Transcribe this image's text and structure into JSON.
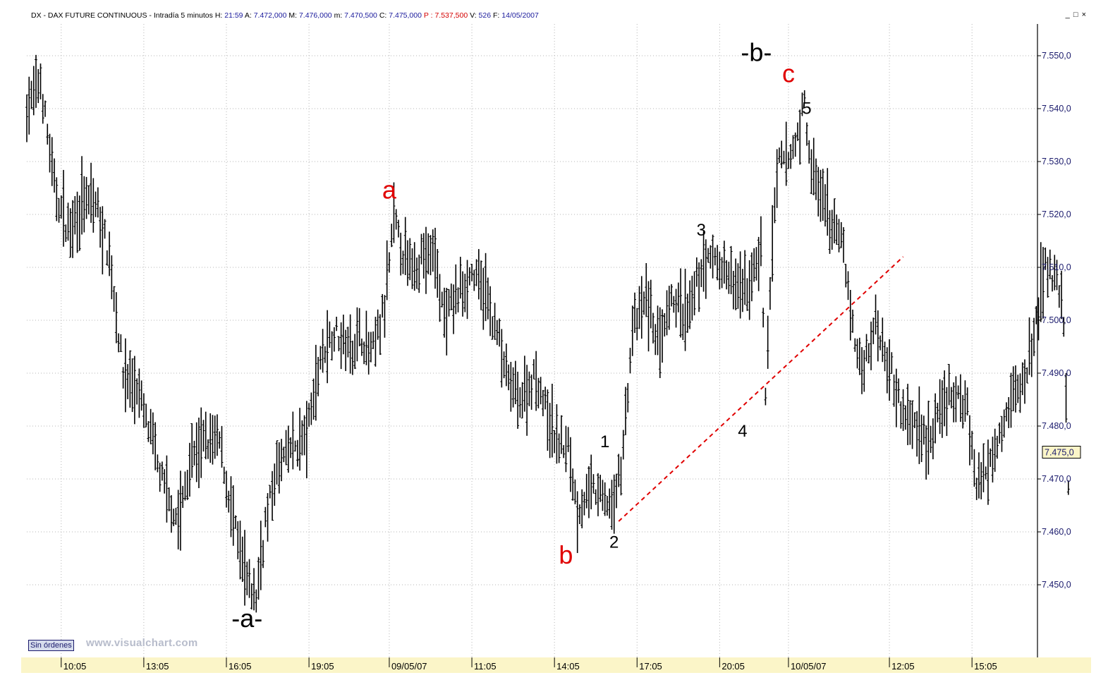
{
  "header": {
    "symbol": "DX - DAX FUTURE CONTINUOUS - Intradía 5 minutos",
    "h_label": "H:",
    "h_value": "21:59",
    "a_label": "A:",
    "a_value": "7.472,000",
    "m_label": "M:",
    "m_value": "7.476,000",
    "mn_label": "m:",
    "mn_value": "7.470,500",
    "c_label": "C:",
    "c_value": "7.475,000",
    "p_label": "P :",
    "p_value": "7.537,500",
    "v_label": "V:",
    "v_value": "526",
    "f_label": "F:",
    "f_value": "14/05/2007"
  },
  "window_controls": {
    "minimize": "_",
    "maximize": "□",
    "close": "×"
  },
  "footer": {
    "orders_button": "Sin órdenes",
    "watermark": "www.visualchart.com"
  },
  "colors": {
    "bars": "#000000",
    "grid": "#b5b5b5",
    "axis_text": "#1a1a6c",
    "annotation_red": "#e00000",
    "annotation_black": "#000000",
    "trendline": "#e00000",
    "time_axis_bg": "#fbf5c8",
    "price_box_bg": "#fbf5c8"
  },
  "chart_data": {
    "type": "bar",
    "subtype": "ohlc",
    "title": "DX - DAX FUTURE CONTINUOUS - Intradía 5 minutos",
    "ylim": [
      7440,
      7554
    ],
    "grid": true,
    "y_ticks": [
      {
        "value": 7550,
        "label": "7.550,0"
      },
      {
        "value": 7540,
        "label": "7.540,0"
      },
      {
        "value": 7530,
        "label": "7.530,0"
      },
      {
        "value": 7520,
        "label": "7.520,0"
      },
      {
        "value": 7510,
        "label": "7.510,0"
      },
      {
        "value": 7500,
        "label": "7.500,0"
      },
      {
        "value": 7490,
        "label": "7.490,0"
      },
      {
        "value": 7480,
        "label": "7.480,0"
      },
      {
        "value": 7470,
        "label": "7.470,0"
      },
      {
        "value": 7460,
        "label": "7.460,0"
      },
      {
        "value": 7450,
        "label": "7.450,0"
      }
    ],
    "last_price": {
      "value": 7475,
      "label": "7.475,0"
    },
    "x_ticks": [
      "10:05",
      "13:05",
      "16:05",
      "19:05",
      "09/05/07",
      "11:05",
      "14:05",
      "17:05",
      "20:05",
      "10/05/07",
      "12:05",
      "15:05"
    ],
    "x_tick_index": [
      15,
      51,
      87,
      123,
      158,
      194,
      230,
      266,
      302,
      332,
      376,
      412
    ],
    "x_count": 440,
    "path": [
      [
        0,
        7540
      ],
      [
        6,
        7545
      ],
      [
        12,
        7525
      ],
      [
        18,
        7517
      ],
      [
        24,
        7522
      ],
      [
        30,
        7522
      ],
      [
        36,
        7512
      ],
      [
        42,
        7490
      ],
      [
        48,
        7487
      ],
      [
        54,
        7478
      ],
      [
        60,
        7468
      ],
      [
        66,
        7462
      ],
      [
        72,
        7474
      ],
      [
        78,
        7477
      ],
      [
        84,
        7477
      ],
      [
        90,
        7462
      ],
      [
        96,
        7450
      ],
      [
        100,
        7448
      ],
      [
        104,
        7462
      ],
      [
        110,
        7473
      ],
      [
        116,
        7476
      ],
      [
        122,
        7478
      ],
      [
        128,
        7493
      ],
      [
        134,
        7498
      ],
      [
        140,
        7495
      ],
      [
        146,
        7497
      ],
      [
        150,
        7493
      ],
      [
        156,
        7502
      ],
      [
        160,
        7519
      ],
      [
        166,
        7510
      ],
      [
        172,
        7512
      ],
      [
        178,
        7512
      ],
      [
        182,
        7500
      ],
      [
        188,
        7505
      ],
      [
        194,
        7509
      ],
      [
        200,
        7505
      ],
      [
        206,
        7496
      ],
      [
        210,
        7488
      ],
      [
        216,
        7485
      ],
      [
        222,
        7490
      ],
      [
        228,
        7480
      ],
      [
        232,
        7477
      ],
      [
        236,
        7476
      ],
      [
        240,
        7464
      ],
      [
        246,
        7468
      ],
      [
        252,
        7466
      ],
      [
        256,
        7465
      ],
      [
        260,
        7476
      ],
      [
        264,
        7498
      ],
      [
        270,
        7504
      ],
      [
        276,
        7495
      ],
      [
        282,
        7504
      ],
      [
        288,
        7500
      ],
      [
        294,
        7510
      ],
      [
        300,
        7512
      ],
      [
        306,
        7508
      ],
      [
        312,
        7505
      ],
      [
        316,
        7508
      ],
      [
        320,
        7514
      ],
      [
        322,
        7486
      ],
      [
        325,
        7515
      ],
      [
        328,
        7530
      ],
      [
        332,
        7530
      ],
      [
        336,
        7535
      ],
      [
        339,
        7541
      ],
      [
        342,
        7528
      ],
      [
        348,
        7521
      ],
      [
        352,
        7517
      ],
      [
        356,
        7514
      ],
      [
        360,
        7498
      ],
      [
        364,
        7490
      ],
      [
        370,
        7500
      ],
      [
        376,
        7492
      ],
      [
        382,
        7482
      ],
      [
        388,
        7480
      ],
      [
        394,
        7477
      ],
      [
        400,
        7485
      ],
      [
        406,
        7485
      ],
      [
        410,
        7484
      ],
      [
        414,
        7468
      ],
      [
        418,
        7472
      ],
      [
        422,
        7477
      ],
      [
        428,
        7484
      ],
      [
        434,
        7488
      ],
      [
        436,
        7490
      ],
      [
        440,
        7500
      ],
      [
        444,
        7510
      ],
      [
        448,
        7508
      ],
      [
        452,
        7500
      ],
      [
        454,
        7470
      ]
    ],
    "annotations": [
      {
        "text": "-a-",
        "x": 96,
        "y": 7442,
        "color": "black",
        "size": 36
      },
      {
        "text": "a",
        "x": 158,
        "y": 7523,
        "color": "red",
        "size": 36
      },
      {
        "text": "b",
        "x": 235,
        "y": 7454,
        "color": "red",
        "size": 36
      },
      {
        "text": "1",
        "x": 252,
        "y": 7476,
        "color": "black",
        "size": 24
      },
      {
        "text": "2",
        "x": 256,
        "y": 7457,
        "color": "black",
        "size": 24
      },
      {
        "text": "3",
        "x": 294,
        "y": 7516,
        "color": "black",
        "size": 24
      },
      {
        "text": "4",
        "x": 312,
        "y": 7478,
        "color": "black",
        "size": 24
      },
      {
        "text": "-b-",
        "x": 318,
        "y": 7549,
        "color": "black",
        "size": 36
      },
      {
        "text": "c",
        "x": 332,
        "y": 7545,
        "color": "red",
        "size": 36
      },
      {
        "text": "5",
        "x": 340,
        "y": 7539,
        "color": "black",
        "size": 24
      }
    ],
    "trendline": {
      "x1": 258,
      "y1": 7462,
      "x2": 382,
      "y2": 7512,
      "style": "dashed",
      "color": "red"
    }
  }
}
